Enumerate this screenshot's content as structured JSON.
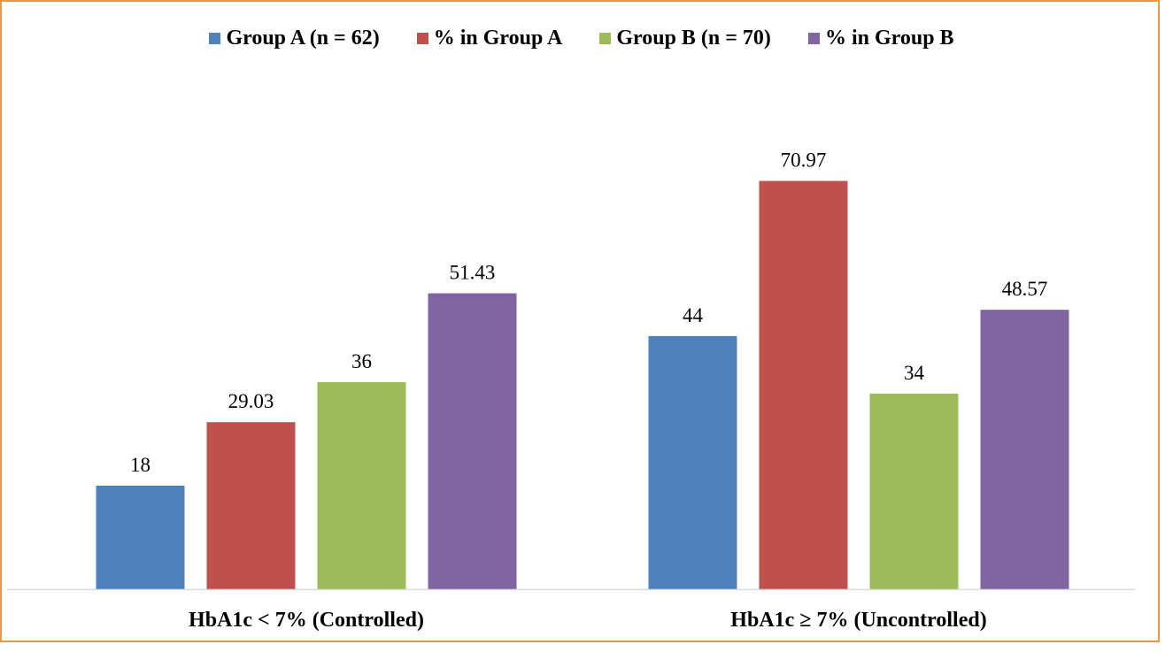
{
  "chart_data": {
    "type": "bar",
    "categories": [
      "HbA1c < 7% (Controlled)",
      "HbA1c ≥ 7% (Uncontrolled)"
    ],
    "series": [
      {
        "name": "Group A (n = 62)",
        "values": [
          18,
          44
        ],
        "labels": [
          "18",
          "44"
        ],
        "color": "#4f81bd"
      },
      {
        "name": "% in Group A",
        "values": [
          29.03,
          70.97
        ],
        "labels": [
          "29.03",
          "70.97"
        ],
        "color": "#c0504d"
      },
      {
        "name": "Group B (n = 70)",
        "values": [
          36,
          34
        ],
        "labels": [
          "36",
          "34"
        ],
        "color": "#9bbb59"
      },
      {
        "name": "% in Group B",
        "values": [
          51.43,
          48.57
        ],
        "labels": [
          "51.43",
          "48.57"
        ],
        "color": "#8064a2"
      }
    ],
    "title": "",
    "xlabel": "",
    "ylabel": "",
    "ylim": [
      0,
      80
    ],
    "grid": false,
    "legend_position": "top-center",
    "border_color": "#e59a43"
  }
}
